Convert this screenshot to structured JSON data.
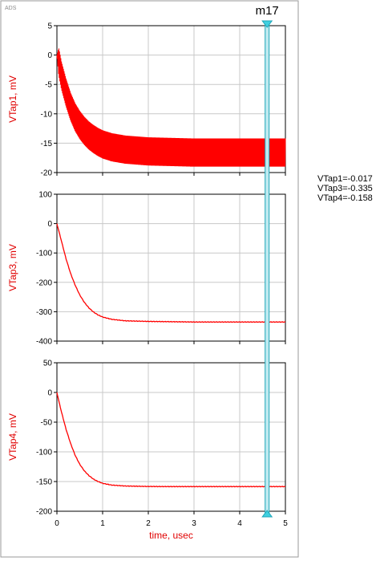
{
  "app": {
    "tag": "ADS"
  },
  "chart_data": [
    {
      "type": "line",
      "ylabel": "VTap1, mV",
      "ylim": [
        -20,
        5
      ],
      "yticks": [
        5,
        0,
        -5,
        -10,
        -15,
        -20
      ],
      "xlim": [
        0,
        5
      ],
      "grid": true,
      "color": "#ff0000",
      "ripple_amplitude_mV": 2.4,
      "x": [
        0,
        0.05,
        0.1,
        0.2,
        0.3,
        0.4,
        0.5,
        0.6,
        0.7,
        0.8,
        0.9,
        1.0,
        1.2,
        1.5,
        2.0,
        2.5,
        3.0,
        3.5,
        4.0,
        4.5,
        5.0
      ],
      "y": [
        0,
        -1.5,
        -3.5,
        -6.4,
        -8.8,
        -10.6,
        -11.9,
        -12.9,
        -13.7,
        -14.3,
        -14.8,
        -15.2,
        -15.7,
        -16.1,
        -16.4,
        -16.5,
        -16.6,
        -16.6,
        -16.6,
        -16.6,
        -16.6
      ]
    },
    {
      "type": "line",
      "ylabel": "VTap3, mV",
      "ylim": [
        -400,
        100
      ],
      "yticks": [
        100,
        0,
        -100,
        -200,
        -300,
        -400
      ],
      "xlim": [
        0,
        5
      ],
      "grid": true,
      "color": "#ff0000",
      "x": [
        0,
        0.05,
        0.1,
        0.2,
        0.3,
        0.4,
        0.5,
        0.6,
        0.7,
        0.8,
        0.9,
        1.0,
        1.2,
        1.5,
        2.0,
        2.5,
        3.0,
        3.5,
        4.0,
        4.5,
        5.0
      ],
      "y": [
        0,
        -30,
        -60,
        -120,
        -170,
        -210,
        -243,
        -268,
        -287,
        -301,
        -311,
        -318,
        -326,
        -331,
        -333,
        -334,
        -335,
        -335,
        -335,
        -335,
        -335
      ]
    },
    {
      "type": "line",
      "ylabel": "VTap4, mV",
      "ylim": [
        -200,
        50
      ],
      "yticks": [
        50,
        0,
        -50,
        -100,
        -150,
        -200
      ],
      "xlim": [
        0,
        5
      ],
      "xticks": [
        0,
        1,
        2,
        3,
        4,
        5
      ],
      "xlabel": "time, usec",
      "grid": true,
      "color": "#ff0000",
      "x": [
        0,
        0.05,
        0.1,
        0.2,
        0.3,
        0.4,
        0.5,
        0.6,
        0.7,
        0.8,
        0.9,
        1.0,
        1.2,
        1.5,
        2.0,
        2.5,
        3.0,
        3.5,
        4.0,
        4.5,
        5.0
      ],
      "y": [
        0,
        -17,
        -33,
        -62,
        -86,
        -106,
        -121,
        -132,
        -140,
        -146,
        -150,
        -153,
        -156,
        -157.5,
        -158.3,
        -158.5,
        -158.5,
        -158.5,
        -158.5,
        -158.5,
        -158.5
      ]
    }
  ],
  "marker": {
    "name": "m17",
    "x": 4.6,
    "color": "#1fa6b8",
    "readout": [
      "VTap1=-0.017",
      "VTap3=-0.335",
      "VTap4=-0.158"
    ]
  }
}
